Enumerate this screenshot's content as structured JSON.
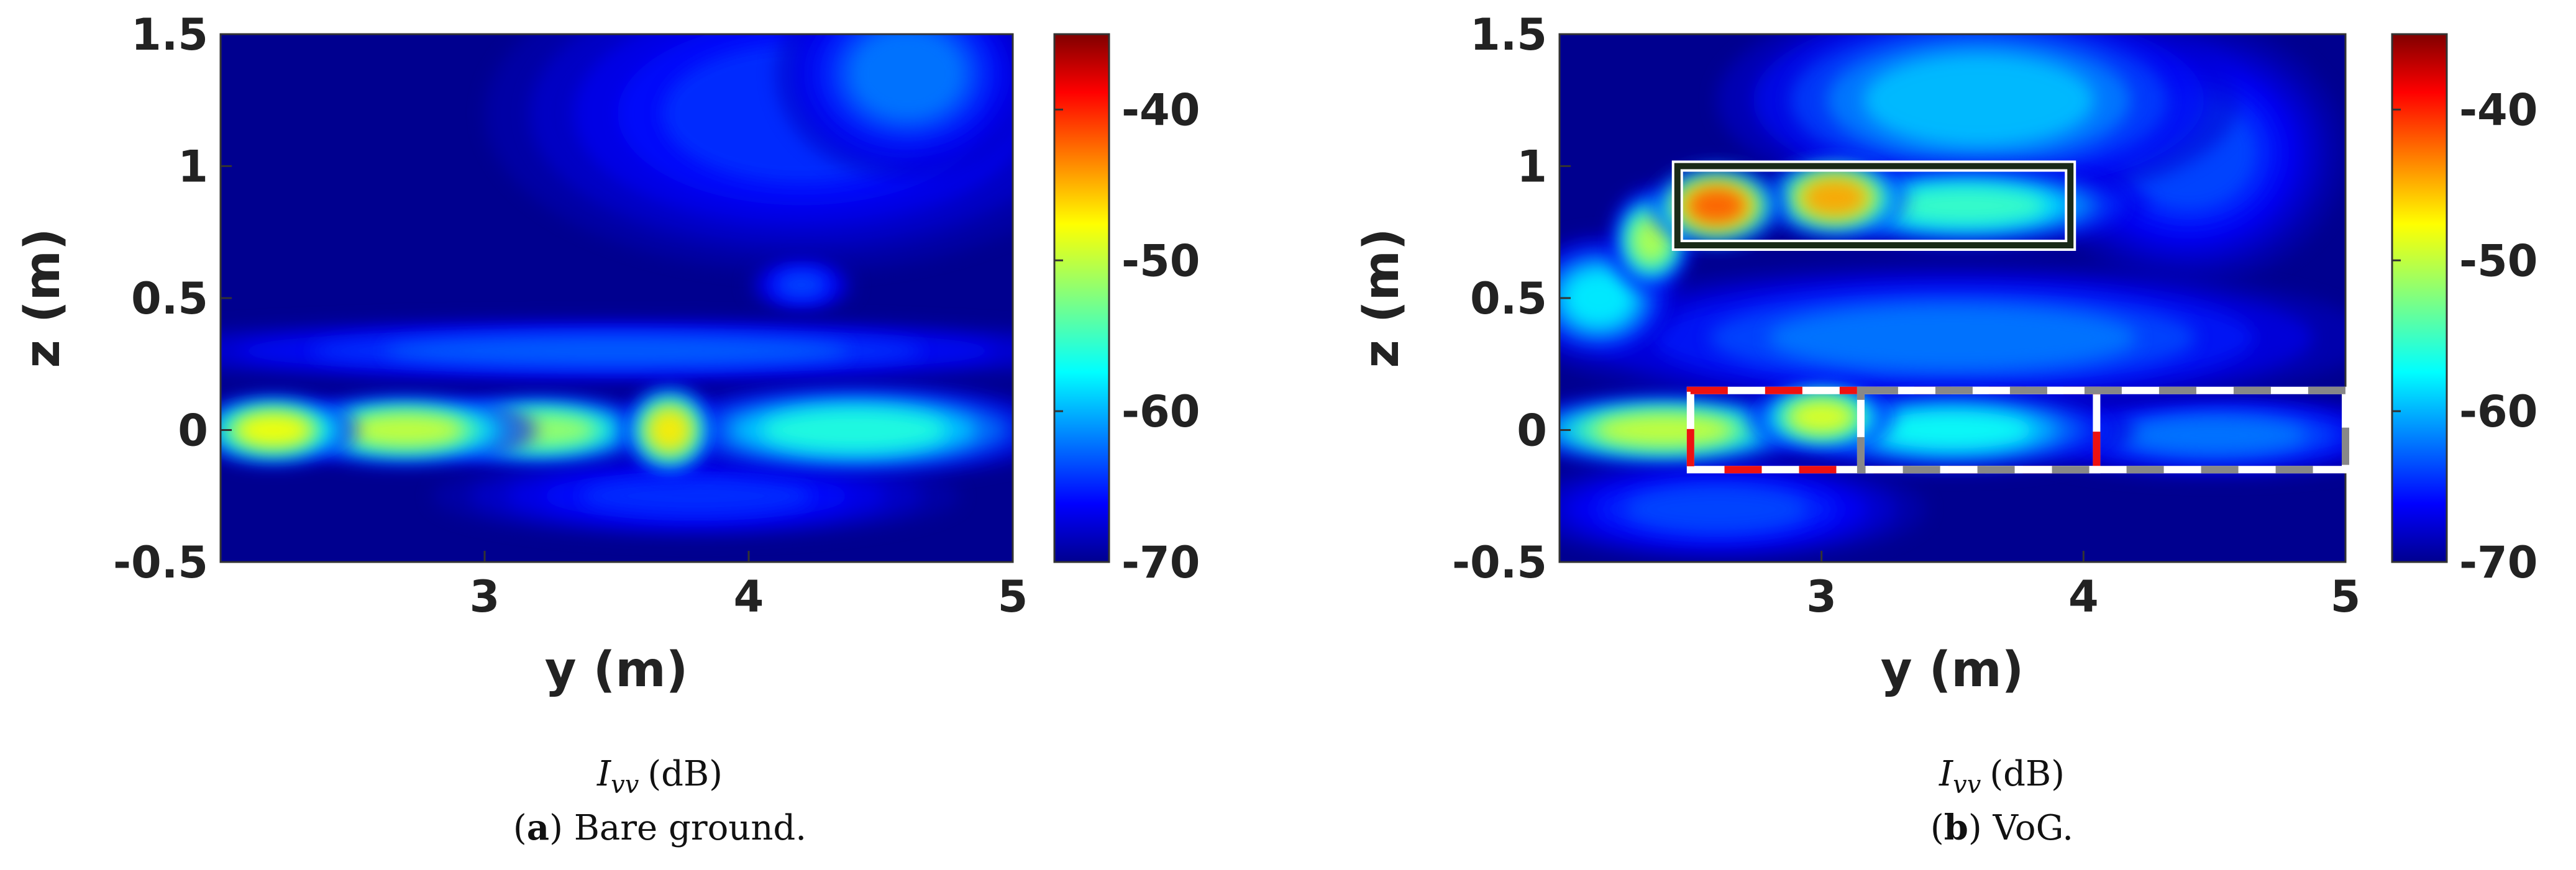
{
  "chart_data": [
    {
      "type": "heatmap",
      "panel": "(a)",
      "xlabel": "y (m)",
      "ylabel": "z (m)",
      "xlim": [
        2.0,
        5.0
      ],
      "ylim": [
        -0.5,
        1.5
      ],
      "xticks": [
        3,
        4,
        5
      ],
      "yticks": [
        -0.5,
        0,
        0.5,
        1,
        1.5
      ],
      "xtick_labels": [
        "3",
        "4",
        "5"
      ],
      "ytick_labels": [
        "-0.5",
        "0",
        "0.5",
        "1",
        "1.5"
      ],
      "colorbar": {
        "min": -70,
        "max": -35,
        "ticks": [
          -40,
          -50,
          -60,
          -70
        ],
        "tick_labels": [
          "-40",
          "-50",
          "-60",
          "-70"
        ],
        "colormap": "jet"
      },
      "metric_symbol": "I",
      "metric_subscript": "vv",
      "metric_unit": "(dB)",
      "caption_label": "a",
      "caption_text": "Bare ground.",
      "background_db": -69,
      "blobs": [
        {
          "y": 2.2,
          "z": 0.0,
          "sy": 0.16,
          "sz": 0.07,
          "db": -44
        },
        {
          "y": 2.7,
          "z": 0.0,
          "sy": 0.25,
          "sz": 0.07,
          "db": -46
        },
        {
          "y": 3.2,
          "z": 0.0,
          "sy": 0.25,
          "sz": 0.07,
          "db": -48
        },
        {
          "y": 3.7,
          "z": 0.0,
          "sy": 0.09,
          "sz": 0.09,
          "db": -43
        },
        {
          "y": 4.4,
          "z": 0.0,
          "sy": 0.4,
          "sz": 0.09,
          "db": -53
        },
        {
          "y": 3.5,
          "z": 0.3,
          "sy": 1.0,
          "sz": 0.06,
          "db": -61
        },
        {
          "y": 4.2,
          "z": 0.55,
          "sy": 0.1,
          "sz": 0.05,
          "db": -62
        },
        {
          "y": 3.8,
          "z": -0.25,
          "sy": 0.5,
          "sz": 0.08,
          "db": -63
        },
        {
          "y": 4.2,
          "z": 1.2,
          "sy": 0.6,
          "sz": 0.3,
          "db": -63
        },
        {
          "y": 4.6,
          "z": 1.35,
          "sy": 0.25,
          "sz": 0.2,
          "db": -60
        }
      ]
    },
    {
      "type": "heatmap",
      "panel": "(b)",
      "xlabel": "y (m)",
      "ylabel": "z (m)",
      "xlim": [
        2.0,
        5.0
      ],
      "ylim": [
        -0.5,
        1.5
      ],
      "xticks": [
        3,
        4,
        5
      ],
      "yticks": [
        -0.5,
        0,
        0.5,
        1,
        1.5
      ],
      "xtick_labels": [
        "3",
        "4",
        "5"
      ],
      "ytick_labels": [
        "-0.5",
        "0",
        "0.5",
        "1",
        "1.5"
      ],
      "colorbar": {
        "min": -70,
        "max": -35,
        "ticks": [
          -40,
          -50,
          -60,
          -70
        ],
        "tick_labels": [
          "-40",
          "-50",
          "-60",
          "-70"
        ],
        "colormap": "jet"
      },
      "metric_symbol": "I",
      "metric_subscript": "vv",
      "metric_unit": "(dB)",
      "caption_label": "b",
      "caption_text": "VoG.",
      "background_db": -69,
      "blobs": [
        {
          "y": 2.6,
          "z": 0.85,
          "sy": 0.13,
          "sz": 0.08,
          "db": -37
        },
        {
          "y": 3.05,
          "z": 0.88,
          "sy": 0.14,
          "sz": 0.08,
          "db": -40
        },
        {
          "y": 3.55,
          "z": 0.85,
          "sy": 0.35,
          "sz": 0.08,
          "db": -52
        },
        {
          "y": 2.35,
          "z": 0.72,
          "sy": 0.08,
          "sz": 0.1,
          "db": -47
        },
        {
          "y": 2.15,
          "z": 0.5,
          "sy": 0.15,
          "sz": 0.12,
          "db": -55
        },
        {
          "y": 2.4,
          "z": 0.0,
          "sy": 0.3,
          "sz": 0.07,
          "db": -46
        },
        {
          "y": 3.0,
          "z": 0.05,
          "sy": 0.14,
          "sz": 0.07,
          "db": -45
        },
        {
          "y": 3.5,
          "z": 0.0,
          "sy": 0.35,
          "sz": 0.08,
          "db": -54
        },
        {
          "y": 4.5,
          "z": -0.02,
          "sy": 0.4,
          "sz": 0.08,
          "db": -60
        },
        {
          "y": 3.6,
          "z": 1.25,
          "sy": 0.5,
          "sz": 0.2,
          "db": -57
        },
        {
          "y": 3.5,
          "z": 0.35,
          "sy": 0.8,
          "sz": 0.14,
          "db": -60
        },
        {
          "y": 4.4,
          "z": 1.05,
          "sy": 0.3,
          "sz": 0.25,
          "db": -62
        },
        {
          "y": 2.6,
          "z": -0.3,
          "sy": 0.4,
          "sz": 0.1,
          "db": -62
        }
      ],
      "annotation_boxes": [
        {
          "y0": 2.45,
          "y1": 3.95,
          "z0": 0.7,
          "z1": 1.0,
          "style": "solid-black-white",
          "label": "solid-box"
        },
        {
          "y0": 2.5,
          "y1": 4.05,
          "z0": -0.15,
          "z1": 0.15,
          "style": "red-white-dashed",
          "label": "red-dashed-box"
        },
        {
          "y0": 3.15,
          "y1": 5.0,
          "z0": -0.15,
          "z1": 0.15,
          "style": "gray-white-dashed",
          "label": "gray-dashed-box"
        }
      ]
    }
  ]
}
